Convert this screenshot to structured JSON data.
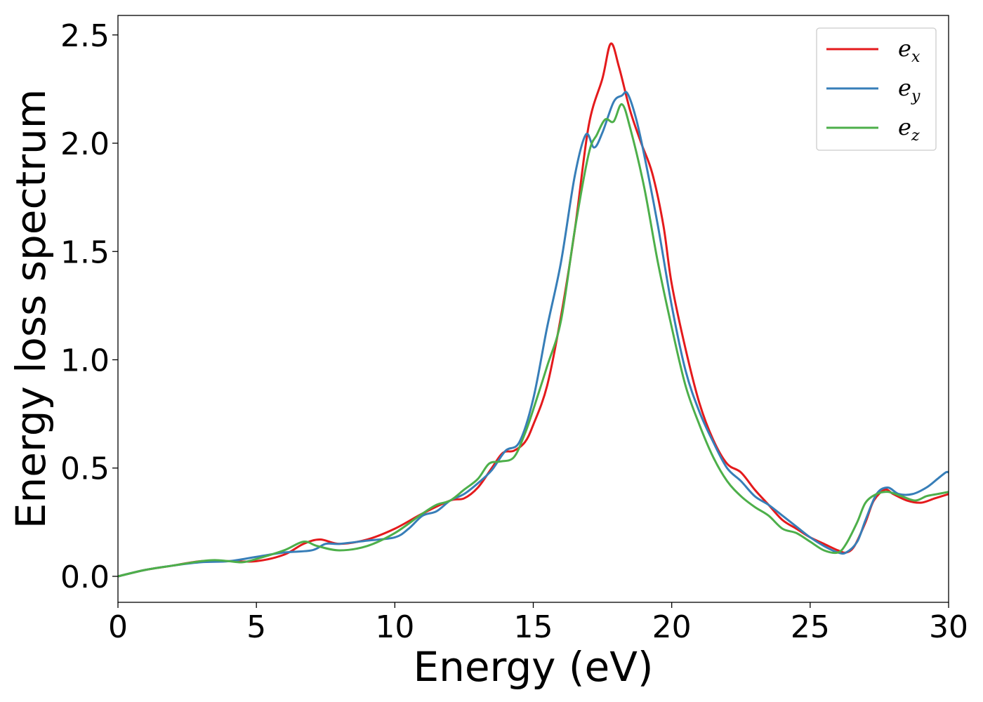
{
  "chart_data": {
    "type": "line",
    "xlabel": "Energy (eV)",
    "ylabel": "Energy loss spectrum",
    "xlim": [
      0,
      30
    ],
    "ylim": [
      -0.12,
      2.59
    ],
    "xticks": [
      0,
      5,
      10,
      15,
      20,
      25,
      30
    ],
    "xtick_labels": [
      "0",
      "5",
      "10",
      "15",
      "20",
      "25",
      "30"
    ],
    "yticks": [
      0.0,
      0.5,
      1.0,
      1.5,
      2.0,
      2.5
    ],
    "ytick_labels": [
      "0.0",
      "0.5",
      "1.0",
      "1.5",
      "2.0",
      "2.5"
    ],
    "grid": false,
    "legend_position": "top-right",
    "series": [
      {
        "name": "e_x",
        "label_base": "e",
        "label_sub": "x",
        "color": "#e41a1c",
        "x": [
          0,
          1,
          2,
          3,
          4,
          5,
          6,
          6.7,
          7.3,
          8,
          9,
          10,
          11,
          12,
          12.5,
          13,
          13.5,
          13.9,
          14.3,
          14.7,
          15,
          15.5,
          16,
          16.5,
          17,
          17.5,
          17.8,
          18.1,
          18.5,
          18.9,
          19.3,
          19.7,
          20,
          20.5,
          21,
          21.5,
          22,
          22.5,
          23,
          23.5,
          24,
          24.5,
          25,
          25.5,
          26,
          26.3,
          26.6,
          27,
          27.3,
          27.7,
          28,
          28.5,
          29,
          29.5,
          30
        ],
        "y": [
          0,
          0.03,
          0.05,
          0.07,
          0.07,
          0.07,
          0.1,
          0.15,
          0.17,
          0.15,
          0.17,
          0.22,
          0.29,
          0.35,
          0.36,
          0.41,
          0.5,
          0.57,
          0.58,
          0.62,
          0.7,
          0.88,
          1.2,
          1.6,
          2.08,
          2.3,
          2.46,
          2.35,
          2.15,
          2.0,
          1.86,
          1.62,
          1.35,
          1.05,
          0.8,
          0.63,
          0.52,
          0.48,
          0.4,
          0.33,
          0.26,
          0.22,
          0.18,
          0.15,
          0.12,
          0.11,
          0.14,
          0.25,
          0.35,
          0.4,
          0.38,
          0.35,
          0.34,
          0.36,
          0.38
        ]
      },
      {
        "name": "e_y",
        "label_base": "e",
        "label_sub": "y",
        "color": "#377eb8",
        "x": [
          0,
          1,
          2,
          3,
          4,
          5,
          6,
          7,
          7.5,
          8,
          9,
          10,
          10.5,
          11,
          11.5,
          12,
          12.5,
          13,
          13.5,
          14,
          14.5,
          15,
          15.5,
          16,
          16.5,
          16.9,
          17.2,
          17.5,
          17.9,
          18.2,
          18.4,
          18.7,
          19,
          19.5,
          20,
          20.5,
          21,
          21.5,
          22,
          22.5,
          23,
          23.5,
          24,
          24.5,
          25,
          25.5,
          26,
          26.3,
          26.7,
          27,
          27.4,
          27.8,
          28.2,
          28.7,
          29.2,
          29.6,
          29.9,
          30
        ],
        "y": [
          0,
          0.03,
          0.05,
          0.065,
          0.07,
          0.09,
          0.11,
          0.12,
          0.15,
          0.15,
          0.165,
          0.18,
          0.22,
          0.28,
          0.3,
          0.35,
          0.38,
          0.43,
          0.49,
          0.58,
          0.62,
          0.82,
          1.15,
          1.45,
          1.85,
          2.04,
          1.98,
          2.05,
          2.19,
          2.22,
          2.23,
          2.12,
          1.95,
          1.62,
          1.25,
          0.95,
          0.76,
          0.62,
          0.5,
          0.44,
          0.37,
          0.33,
          0.28,
          0.23,
          0.18,
          0.14,
          0.11,
          0.11,
          0.16,
          0.26,
          0.38,
          0.41,
          0.38,
          0.38,
          0.41,
          0.45,
          0.48,
          0.48
        ]
      },
      {
        "name": "e_z",
        "label_base": "e",
        "label_sub": "z",
        "color": "#4daf4a",
        "x": [
          0,
          1,
          2,
          3,
          3.5,
          4,
          4.5,
          5,
          6,
          6.7,
          7.2,
          8,
          9,
          10,
          11,
          11.5,
          12,
          12.5,
          13,
          13.4,
          13.8,
          14.3,
          14.7,
          15,
          15.5,
          16,
          16.5,
          17,
          17.3,
          17.6,
          17.9,
          18.2,
          18.5,
          19,
          19.5,
          20,
          20.5,
          21,
          21.5,
          22,
          22.5,
          23,
          23.5,
          24,
          24.5,
          25,
          25.5,
          26,
          26.3,
          26.7,
          27,
          27.4,
          27.8,
          28.3,
          28.8,
          29.2,
          29.6,
          30
        ],
        "y": [
          0,
          0.03,
          0.05,
          0.07,
          0.075,
          0.07,
          0.065,
          0.08,
          0.12,
          0.16,
          0.14,
          0.12,
          0.14,
          0.2,
          0.29,
          0.33,
          0.35,
          0.4,
          0.45,
          0.52,
          0.53,
          0.55,
          0.66,
          0.77,
          0.97,
          1.18,
          1.6,
          1.95,
          2.04,
          2.11,
          2.1,
          2.18,
          2.07,
          1.8,
          1.45,
          1.15,
          0.88,
          0.7,
          0.55,
          0.44,
          0.37,
          0.32,
          0.28,
          0.22,
          0.2,
          0.16,
          0.12,
          0.11,
          0.15,
          0.25,
          0.34,
          0.38,
          0.39,
          0.37,
          0.35,
          0.37,
          0.38,
          0.39
        ]
      }
    ]
  }
}
